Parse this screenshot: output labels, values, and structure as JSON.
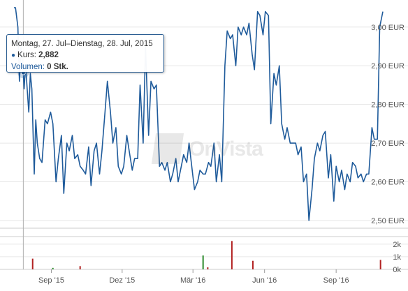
{
  "chart_data": {
    "type": "line",
    "price_axis": {
      "ticks": [
        "2,50 EUR",
        "2,60 EUR",
        "2,70 EUR",
        "2,80 EUR",
        "2,90 EUR",
        "3,00 EUR"
      ],
      "tick_values": [
        2.5,
        2.6,
        2.7,
        2.8,
        2.9,
        3.0
      ],
      "ylim": [
        2.48,
        3.07
      ]
    },
    "volume_axis": {
      "ticks": [
        "0k",
        "1k",
        "2k"
      ],
      "tick_values": [
        0,
        1000,
        2000
      ],
      "ylim": [
        0,
        2600
      ]
    },
    "x_axis": {
      "labels": [
        "Sep '15",
        "Dez '15",
        "Mär '16",
        "Jun '16",
        "Sep '16"
      ],
      "label_dates": [
        "2015-09-01",
        "2015-12-01",
        "2016-03-01",
        "2016-06-01",
        "2016-09-01"
      ],
      "xlim": [
        "2015-07-15",
        "2016-10-31"
      ]
    },
    "grid": true,
    "series": [
      {
        "color": "#1f5b9b",
        "x": [
          "2015-07-15",
          "2015-07-17",
          "2015-07-20",
          "2015-07-22",
          "2015-07-24",
          "2015-07-27",
          "2015-07-28",
          "2015-07-30",
          "2015-08-01",
          "2015-08-03",
          "2015-08-05",
          "2015-08-07",
          "2015-08-10",
          "2015-08-12",
          "2015-08-14",
          "2015-08-17",
          "2015-08-20",
          "2015-08-24",
          "2015-08-27",
          "2015-08-31",
          "2015-09-03",
          "2015-09-07",
          "2015-09-10",
          "2015-09-14",
          "2015-09-17",
          "2015-09-21",
          "2015-09-24",
          "2015-09-28",
          "2015-10-01",
          "2015-10-05",
          "2015-10-08",
          "2015-10-12",
          "2015-10-15",
          "2015-10-19",
          "2015-10-22",
          "2015-10-26",
          "2015-10-29",
          "2015-11-02",
          "2015-11-05",
          "2015-11-09",
          "2015-11-12",
          "2015-11-16",
          "2015-11-19",
          "2015-11-23",
          "2015-11-26",
          "2015-11-30",
          "2015-12-03",
          "2015-12-07",
          "2015-12-10",
          "2015-12-14",
          "2015-12-17",
          "2015-12-21",
          "2015-12-24",
          "2015-12-28",
          "2015-12-31",
          "2016-01-04",
          "2016-01-07",
          "2016-01-11",
          "2016-01-14",
          "2016-01-18",
          "2016-01-21",
          "2016-01-25",
          "2016-01-28",
          "2016-02-01",
          "2016-02-04",
          "2016-02-08",
          "2016-02-11",
          "2016-02-15",
          "2016-02-18",
          "2016-02-22",
          "2016-02-25",
          "2016-02-29",
          "2016-03-03",
          "2016-03-07",
          "2016-03-10",
          "2016-03-14",
          "2016-03-17",
          "2016-03-21",
          "2016-03-24",
          "2016-03-28",
          "2016-03-31",
          "2016-04-04",
          "2016-04-07",
          "2016-04-11",
          "2016-04-14",
          "2016-04-18",
          "2016-04-21",
          "2016-04-25",
          "2016-04-28",
          "2016-05-02",
          "2016-05-05",
          "2016-05-09",
          "2016-05-12",
          "2016-05-16",
          "2016-05-19",
          "2016-05-23",
          "2016-05-26",
          "2016-05-30",
          "2016-06-02",
          "2016-06-06",
          "2016-06-09",
          "2016-06-13",
          "2016-06-16",
          "2016-06-20",
          "2016-06-23",
          "2016-06-27",
          "2016-06-30",
          "2016-07-04",
          "2016-07-07",
          "2016-07-11",
          "2016-07-14",
          "2016-07-18",
          "2016-07-21",
          "2016-07-25",
          "2016-07-28",
          "2016-08-01",
          "2016-08-04",
          "2016-08-08",
          "2016-08-11",
          "2016-08-15",
          "2016-08-18",
          "2016-08-22",
          "2016-08-25",
          "2016-08-29",
          "2016-09-01",
          "2016-09-05",
          "2016-09-08",
          "2016-09-12",
          "2016-09-15",
          "2016-09-19",
          "2016-09-22",
          "2016-09-26",
          "2016-09-29",
          "2016-10-03",
          "2016-10-06",
          "2016-10-10",
          "2016-10-13",
          "2016-10-17",
          "2016-10-20",
          "2016-10-24",
          "2016-10-27",
          "2016-10-31"
        ],
        "values": [
          3.05,
          3.05,
          3.0,
          2.86,
          2.95,
          2.882,
          2.84,
          2.9,
          2.84,
          2.78,
          2.88,
          2.84,
          2.62,
          2.76,
          2.7,
          2.66,
          2.65,
          2.76,
          2.75,
          2.78,
          2.75,
          2.6,
          2.66,
          2.72,
          2.57,
          2.7,
          2.68,
          2.72,
          2.66,
          2.67,
          2.64,
          2.63,
          2.62,
          2.69,
          2.59,
          2.68,
          2.7,
          2.62,
          2.68,
          2.78,
          2.86,
          2.78,
          2.7,
          2.74,
          2.64,
          2.62,
          2.64,
          2.72,
          2.68,
          2.63,
          2.66,
          2.66,
          2.85,
          2.7,
          2.95,
          2.72,
          2.86,
          2.84,
          2.85,
          2.64,
          2.65,
          2.63,
          2.65,
          2.6,
          2.62,
          2.66,
          2.6,
          2.64,
          2.67,
          2.65,
          2.7,
          2.63,
          2.58,
          2.6,
          2.63,
          2.62,
          2.62,
          2.65,
          2.64,
          2.7,
          2.6,
          2.67,
          2.6,
          2.9,
          2.99,
          2.97,
          2.98,
          2.9,
          3.0,
          2.98,
          3.0,
          2.98,
          3.01,
          2.93,
          2.89,
          3.04,
          3.03,
          2.98,
          3.04,
          3.03,
          2.75,
          2.88,
          2.85,
          2.9,
          2.75,
          2.71,
          2.74,
          2.7,
          2.7,
          2.7,
          2.67,
          2.69,
          2.6,
          2.62,
          2.5,
          2.58,
          2.66,
          2.7,
          2.68,
          2.72,
          2.73,
          2.61,
          2.67,
          2.55,
          2.64,
          2.6,
          2.63,
          2.58,
          2.62,
          2.6,
          2.65,
          2.64,
          2.61,
          2.62,
          2.6,
          2.62,
          2.62,
          2.74,
          2.71,
          2.71,
          3.0,
          3.04
        ],
        "tooltip_index": 5
      }
    ],
    "volume": {
      "colors": [
        "#b22222",
        "#2e8b2e"
      ],
      "x": [
        "2015-08-08",
        "2015-09-03",
        "2015-10-08",
        "2016-03-14",
        "2016-03-20",
        "2016-04-20",
        "2016-05-17",
        "2016-10-28"
      ],
      "values": [
        850,
        120,
        260,
        1100,
        160,
        2250,
        680,
        750
      ],
      "color_index": [
        0,
        1,
        0,
        1,
        0,
        0,
        0,
        0
      ]
    }
  },
  "tooltip": {
    "date_range": "Montag, 27. Jul–Dienstag, 28. Jul, 2015",
    "price_label": "Kurs:",
    "price_value": "2,882",
    "volume_label": "Volumen:",
    "volume_value": "0 Stk."
  },
  "watermark": {
    "text": "OnVista"
  }
}
